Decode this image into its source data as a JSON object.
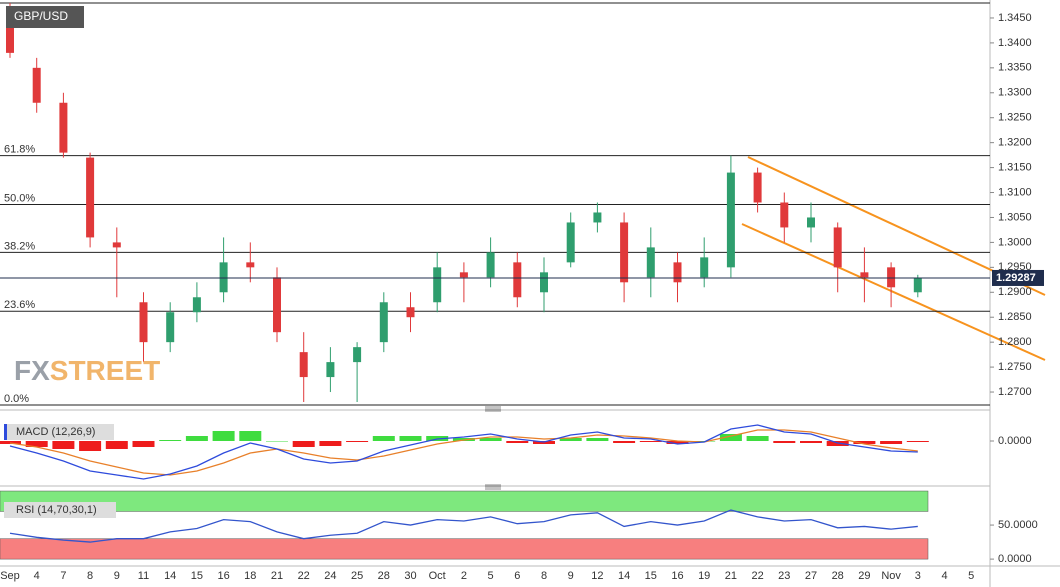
{
  "chart_data": [
    {
      "type": "candlestick",
      "title": "GBP/USD",
      "categories": [
        "Sep",
        "4",
        "7",
        "8",
        "9",
        "11",
        "14",
        "15",
        "16",
        "18",
        "21",
        "22",
        "24",
        "25",
        "28",
        "30",
        "Oct",
        "2",
        "5",
        "6",
        "8",
        "9",
        "12",
        "14",
        "15",
        "16",
        "19",
        "21",
        "22",
        "23",
        "27",
        "28",
        "29",
        "Nov",
        "3",
        "4",
        "5"
      ],
      "open": [
        1.344,
        1.335,
        1.328,
        1.317,
        1.3,
        1.288,
        1.28,
        1.286,
        1.29,
        1.296,
        1.293,
        1.278,
        1.273,
        1.276,
        1.28,
        1.287,
        1.288,
        1.294,
        1.293,
        1.296,
        1.29,
        1.296,
        1.304,
        1.304,
        1.293,
        1.296,
        1.293,
        1.295,
        1.314,
        1.308,
        1.303,
        1.303,
        1.294,
        1.295,
        1.29,
        null,
        null
      ],
      "high": [
        1.348,
        1.337,
        1.33,
        1.318,
        1.303,
        1.29,
        1.288,
        1.292,
        1.301,
        1.3,
        1.295,
        1.282,
        1.279,
        1.28,
        1.29,
        1.29,
        1.298,
        1.296,
        1.301,
        1.298,
        1.297,
        1.306,
        1.308,
        1.306,
        1.303,
        1.298,
        1.301,
        1.3174,
        1.315,
        1.31,
        1.308,
        1.304,
        1.299,
        1.296,
        1.2935,
        null,
        null
      ],
      "low": [
        1.337,
        1.326,
        1.317,
        1.299,
        1.289,
        1.276,
        1.278,
        1.284,
        1.288,
        1.292,
        1.28,
        1.268,
        1.27,
        1.268,
        1.278,
        1.282,
        1.286,
        1.288,
        1.291,
        1.287,
        1.286,
        1.295,
        1.302,
        1.288,
        1.289,
        1.288,
        1.291,
        1.293,
        1.306,
        1.3,
        1.3,
        1.29,
        1.288,
        1.287,
        1.289,
        null,
        null
      ],
      "close": [
        1.338,
        1.328,
        1.318,
        1.301,
        1.299,
        1.28,
        1.286,
        1.289,
        1.296,
        1.295,
        1.282,
        1.273,
        1.276,
        1.279,
        1.288,
        1.285,
        1.295,
        1.293,
        1.298,
        1.289,
        1.294,
        1.304,
        1.306,
        1.292,
        1.299,
        1.292,
        1.297,
        1.314,
        1.308,
        1.303,
        1.305,
        1.295,
        1.293,
        1.291,
        1.2929,
        null,
        null
      ],
      "up_color": "#2f9e6e",
      "down_color": "#e0393a",
      "ylim": [
        1.2674,
        1.348
      ],
      "yticks": [
        {
          "value": 1.27,
          "label": "1.2700"
        },
        {
          "value": 1.275,
          "label": "1.2750"
        },
        {
          "value": 1.28,
          "label": "1.2800"
        },
        {
          "value": 1.285,
          "label": "1.2850"
        },
        {
          "value": 1.29,
          "label": "1.2900"
        },
        {
          "value": 1.295,
          "label": "1.2950"
        },
        {
          "value": 1.3,
          "label": "1.3000"
        },
        {
          "value": 1.305,
          "label": "1.3050"
        },
        {
          "value": 1.31,
          "label": "1.3100"
        },
        {
          "value": 1.315,
          "label": "1.3150"
        },
        {
          "value": 1.32,
          "label": "1.3200"
        },
        {
          "value": 1.325,
          "label": "1.3250"
        },
        {
          "value": 1.33,
          "label": "1.3300"
        },
        {
          "value": 1.335,
          "label": "1.3350"
        },
        {
          "value": 1.34,
          "label": "1.3400"
        },
        {
          "value": 1.345,
          "label": "1.3450"
        }
      ],
      "fib_levels": [
        {
          "value": 1.3174,
          "label": "61.8%"
        },
        {
          "value": 1.3076,
          "label": "50.0%"
        },
        {
          "value": 1.298,
          "label": "38.2%"
        },
        {
          "value": 1.2862,
          "label": "23.6%"
        },
        {
          "value": 1.2674,
          "label": "0.0%"
        }
      ],
      "last_price": 1.29287
    },
    {
      "type": "macd",
      "title": "MACD (12,26,9)",
      "macd": [
        -0.0005,
        -0.0012,
        -0.002,
        -0.003,
        -0.0034,
        -0.0038,
        -0.0033,
        -0.0025,
        -0.0012,
        -0.0002,
        -0.0008,
        -0.0018,
        -0.0022,
        -0.002,
        -0.001,
        -0.0004,
        0.0002,
        0.0004,
        0.0007,
        0.0002,
        -0.0001,
        0.0006,
        0.0009,
        0.0003,
        0.0002,
        -0.0003,
        -0.0001,
        0.0012,
        0.0016,
        0.0009,
        0.0007,
        -0.0002,
        -0.0006,
        -0.001,
        -0.0011,
        null,
        null
      ],
      "signal": [
        -0.0002,
        -0.0006,
        -0.0012,
        -0.002,
        -0.0026,
        -0.0032,
        -0.0034,
        -0.003,
        -0.0022,
        -0.0012,
        -0.0008,
        -0.0012,
        -0.0017,
        -0.0019,
        -0.0015,
        -0.0009,
        -0.0003,
        0.0001,
        0.0004,
        0.0004,
        0.0002,
        0.0003,
        0.0006,
        0.0005,
        0.0003,
        0.0,
        -0.0001,
        0.0005,
        0.0011,
        0.0011,
        0.0009,
        0.0003,
        -0.0003,
        -0.0007,
        -0.001,
        null,
        null
      ],
      "histogram": [
        -0.0003,
        -0.0006,
        -0.0008,
        -0.001,
        -0.0008,
        -0.0006,
        0.0001,
        0.0005,
        0.001,
        0.001,
        0.0,
        -0.0006,
        -0.0005,
        -0.0001,
        0.0005,
        0.0005,
        0.0005,
        0.0003,
        0.0003,
        -0.0002,
        -0.0003,
        0.0003,
        0.0003,
        -0.0002,
        -0.0001,
        -0.0003,
        0.0,
        0.0007,
        0.0005,
        -0.0002,
        -0.0002,
        -0.0005,
        -0.0003,
        -0.0003,
        -0.0001,
        null,
        null
      ],
      "macd_color": "#2e4bdc",
      "signal_color": "#e8802a",
      "pos_color": "#3fdc3f",
      "neg_color": "#ee1c1c",
      "ylim": [
        -0.0041,
        0.0023
      ],
      "yticks": [
        {
          "value": 0,
          "label": "0.0000"
        }
      ]
    },
    {
      "type": "rsi",
      "title": "RSI (14,70,30,1)",
      "values": [
        38,
        32,
        28,
        25,
        30,
        30,
        40,
        45,
        58,
        55,
        40,
        30,
        35,
        38,
        55,
        50,
        58,
        56,
        62,
        52,
        55,
        65,
        68,
        48,
        55,
        50,
        56,
        72,
        62,
        56,
        58,
        46,
        48,
        44,
        48,
        null,
        null
      ],
      "color": "#3355cc",
      "bands": [
        {
          "from": 70,
          "to": 100,
          "color": "#7ee87e"
        },
        {
          "from": 0,
          "to": 30,
          "color": "#f77f7f"
        }
      ],
      "ylim": [
        -16,
        101.5
      ],
      "yticks": [
        {
          "value": 50,
          "label": "50.0000"
        },
        {
          "value": 0,
          "label": "0.0000"
        }
      ]
    }
  ],
  "watermark": [
    "FX",
    "STREET"
  ]
}
